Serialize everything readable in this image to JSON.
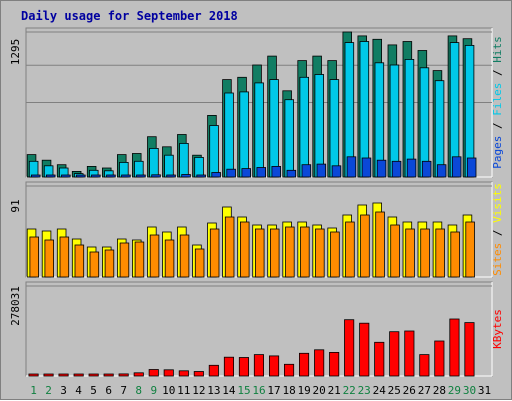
{
  "chart_data": {
    "type": "bar",
    "title": "Daily usage for September 2018",
    "days": [
      "1",
      "2",
      "3",
      "4",
      "5",
      "6",
      "7",
      "8",
      "9",
      "10",
      "11",
      "12",
      "13",
      "14",
      "15",
      "16",
      "17",
      "18",
      "19",
      "20",
      "21",
      "22",
      "23",
      "24",
      "25",
      "26",
      "27",
      "28",
      "29",
      "30",
      "31"
    ],
    "weekend_days": [
      "1",
      "2",
      "8",
      "9",
      "15",
      "16",
      "22",
      "23",
      "29",
      "30"
    ],
    "panels": [
      {
        "name": "traffic",
        "ymax_label": "1295",
        "ymax": 1295,
        "label_parts": [
          "Pages",
          "Files",
          "Hits"
        ],
        "series": [
          {
            "name": "Hits",
            "color": "#117d63",
            "values": [
              200,
              150,
              110,
              50,
              95,
              80,
              200,
              210,
              360,
              270,
              380,
              195,
              550,
              870,
              890,
              1000,
              1080,
              770,
              1040,
              1080,
              1040,
              1295,
              1260,
              1230,
              1180,
              1210,
              1130,
              950,
              1260,
              1235,
              0
            ]
          },
          {
            "name": "Files",
            "color": "#00c8e8",
            "values": [
              140,
              100,
              80,
              30,
              60,
              55,
              130,
              140,
              255,
              195,
              300,
              175,
              460,
              750,
              760,
              840,
              870,
              690,
              890,
              915,
              870,
              1200,
              1210,
              1020,
              1000,
              1050,
              975,
              860,
              1200,
              1175,
              0
            ]
          },
          {
            "name": "Pages",
            "color": "#0a48d8",
            "values": [
              10,
              8,
              6,
              4,
              5,
              5,
              12,
              14,
              20,
              16,
              22,
              18,
              40,
              70,
              75,
              85,
              95,
              60,
              110,
              115,
              100,
              180,
              170,
              150,
              140,
              160,
              140,
              110,
              180,
              170,
              0
            ]
          }
        ]
      },
      {
        "name": "visitors",
        "ymax_label": "91",
        "ymax": 91,
        "label_parts": [
          "Sites",
          "Visits"
        ],
        "series": [
          {
            "name": "Visits",
            "color": "#ffff00",
            "values": [
              48,
              46,
              48,
              38,
              30,
              30,
              38,
              37,
              50,
              45,
              50,
              32,
              54,
              70,
              60,
              52,
              52,
              55,
              55,
              52,
              49,
              62,
              72,
              74,
              60,
              55,
              55,
              55,
              52,
              62,
              0
            ]
          },
          {
            "name": "Sites",
            "color": "#ff8c00",
            "values": [
              40,
              37,
              40,
              32,
              25,
              27,
              34,
              35,
              42,
              37,
              42,
              28,
              48,
              60,
              55,
              48,
              48,
              50,
              50,
              48,
              45,
              55,
              62,
              65,
              52,
              48,
              48,
              48,
              45,
              55,
              0
            ]
          }
        ]
      },
      {
        "name": "kbytes",
        "ymax_label": "278031",
        "ymax": 278031,
        "label_parts": [
          "KBytes"
        ],
        "series": [
          {
            "name": "KBytes",
            "color": "#ff0000",
            "values": [
              4000,
              5500,
              6000,
              3200,
              5000,
              5500,
              6500,
              10000,
              20000,
              19000,
              16000,
              14000,
              33000,
              58000,
              57000,
              66000,
              62000,
              36000,
              70000,
              81000,
              73000,
              174000,
              163000,
              104000,
              137000,
              139000,
              66000,
              108000,
              176000,
              165000,
              0
            ]
          }
        ]
      }
    ],
    "colors": {
      "title": "#0000a0",
      "day_label": "#000000",
      "weekend_label": "#108040",
      "gridline": "#808080",
      "plot_bg": "#c0c0c0"
    }
  }
}
